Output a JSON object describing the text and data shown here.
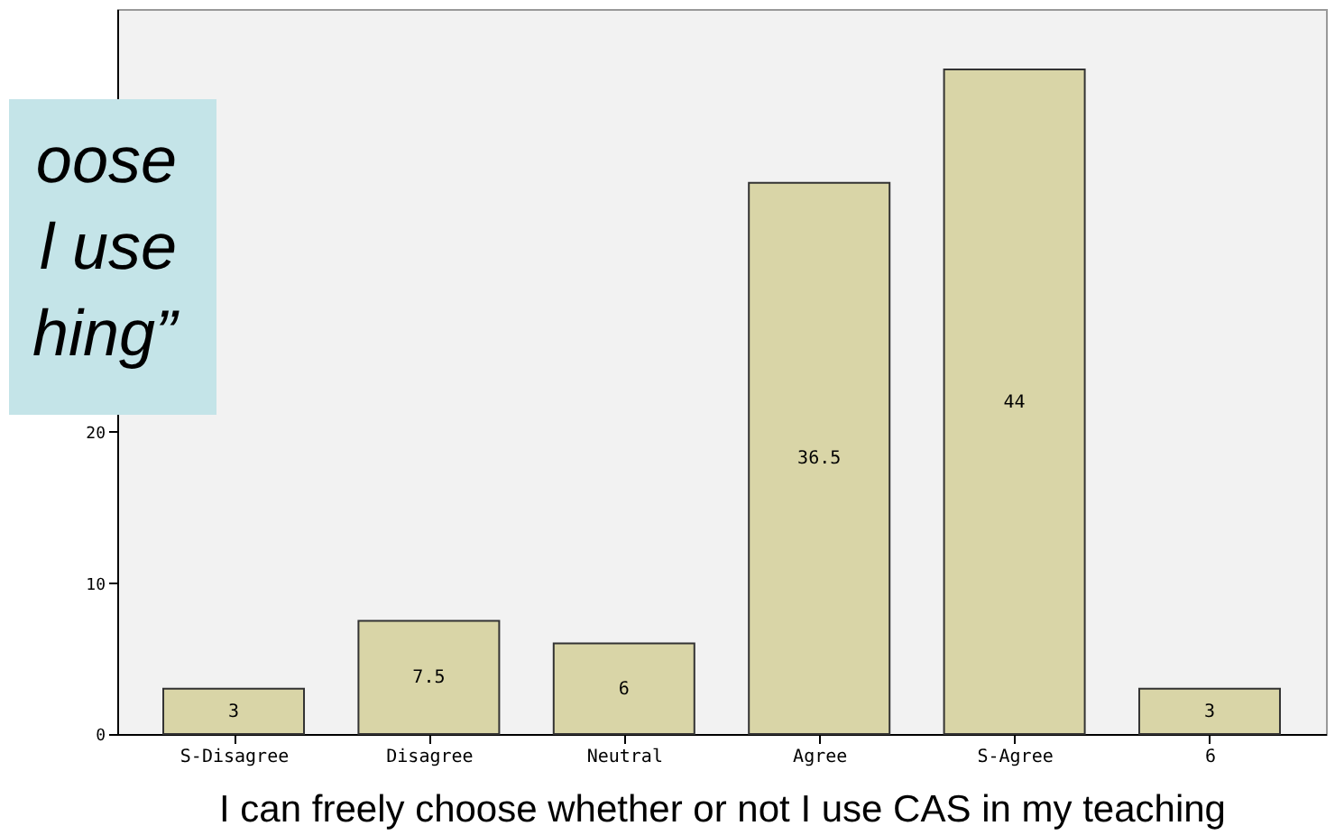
{
  "chart_data": {
    "type": "bar",
    "xlabel": "I can freely choose whether or not I use CAS in my teaching",
    "categories": [
      "S-Disagree",
      "Disagree",
      "Neutral",
      "Agree",
      "S-Agree",
      "6"
    ],
    "values": [
      3,
      7.5,
      6,
      36.5,
      44,
      3
    ],
    "color": "#d9d5a7",
    "ylim": [
      0,
      48
    ],
    "yticks": [
      0,
      10,
      20
    ],
    "data_labels": true,
    "grid": false,
    "annotations": [
      "oose\nl use\nhing”"
    ]
  }
}
